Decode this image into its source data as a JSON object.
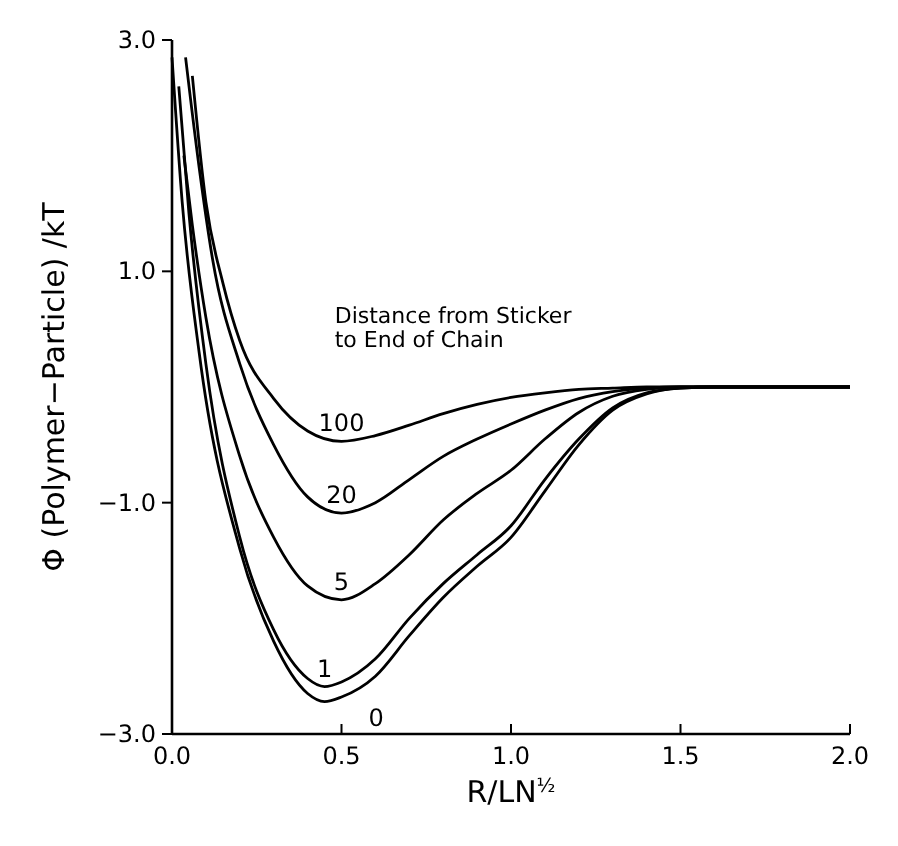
{
  "chart_data": {
    "type": "line",
    "xlabel": "R/LN$^{½}$",
    "ylabel": "Φ (Polymer−Particle) /kT",
    "xlim": [
      0,
      2.0
    ],
    "ylim": [
      -3.0,
      3.0
    ],
    "xticks": [
      {
        "value": 0,
        "label": "0.0"
      },
      {
        "value": 0.5,
        "label": "0.5"
      },
      {
        "value": 1,
        "label": "1.0"
      },
      {
        "value": 1.5,
        "label": "1.5"
      },
      {
        "value": 2,
        "label": "2.0"
      }
    ],
    "yticks": [
      {
        "value": -3,
        "label": "−3.0"
      },
      {
        "value": -1,
        "label": "−1.0"
      },
      {
        "value": 1,
        "label": "1.0"
      },
      {
        "value": 3,
        "label": "3.0"
      }
    ],
    "grid": false,
    "marker": "none",
    "line_style": "solid",
    "annotations": [
      "Distance from Sticker\nto End of Chain"
    ],
    "series": [
      {
        "name": "100",
        "color": "#000000",
        "x": [
          0.06,
          0.1,
          0.15,
          0.2,
          0.3,
          0.4,
          0.5,
          0.6,
          0.7,
          0.8,
          0.9,
          1.0,
          1.1,
          1.2,
          1.3,
          1.4,
          2.0
        ],
        "values": [
          2.69,
          1.6,
          0.9,
          0.4,
          -0.1,
          -0.38,
          -0.47,
          -0.42,
          -0.33,
          -0.23,
          -0.15,
          -0.09,
          -0.05,
          -0.02,
          -0.01,
          0,
          0
        ]
      },
      {
        "name": "20",
        "color": "#000000",
        "x": [
          0.04,
          0.08,
          0.12,
          0.2,
          0.3,
          0.4,
          0.5,
          0.6,
          0.7,
          0.8,
          0.9,
          1.0,
          1.1,
          1.2,
          1.3,
          1.4,
          1.5,
          2.0
        ],
        "values": [
          2.85,
          1.9,
          1.1,
          0.2,
          -0.5,
          -0.95,
          -1.09,
          -1.0,
          -0.8,
          -0.6,
          -0.45,
          -0.32,
          -0.2,
          -0.1,
          -0.04,
          -0.01,
          0,
          0
        ]
      },
      {
        "name": "5",
        "color": "#000000",
        "x": [
          0.035,
          0.06,
          0.1,
          0.2,
          0.3,
          0.4,
          0.5,
          0.6,
          0.7,
          0.8,
          0.9,
          1.0,
          1.1,
          1.2,
          1.3,
          1.4,
          1.5,
          2.0
        ],
        "values": [
          2.0,
          1.4,
          0.6,
          -0.6,
          -1.3,
          -1.72,
          -1.84,
          -1.7,
          -1.45,
          -1.15,
          -0.92,
          -0.72,
          -0.45,
          -0.22,
          -0.08,
          -0.02,
          0,
          0
        ]
      },
      {
        "name": "1",
        "color": "#000000",
        "x": [
          0.02,
          0.05,
          0.1,
          0.2,
          0.3,
          0.4,
          0.45,
          0.5,
          0.6,
          0.7,
          0.8,
          0.9,
          1.0,
          1.1,
          1.2,
          1.3,
          1.4,
          1.5,
          1.6,
          2.0
        ],
        "values": [
          2.6,
          1.5,
          0.2,
          -1.3,
          -2.1,
          -2.52,
          -2.59,
          -2.55,
          -2.35,
          -2.0,
          -1.7,
          -1.45,
          -1.2,
          -0.8,
          -0.45,
          -0.18,
          -0.05,
          -0.01,
          0,
          0
        ]
      },
      {
        "name": "0",
        "color": "#000000",
        "x": [
          0.0,
          0.03,
          0.08,
          0.2,
          0.3,
          0.4,
          0.45,
          0.5,
          0.6,
          0.7,
          0.8,
          0.9,
          1.0,
          1.1,
          1.2,
          1.3,
          1.4,
          1.5,
          1.6,
          2.0
        ],
        "values": [
          2.85,
          1.6,
          0.3,
          -1.4,
          -2.2,
          -2.65,
          -2.72,
          -2.68,
          -2.5,
          -2.15,
          -1.82,
          -1.55,
          -1.3,
          -0.9,
          -0.5,
          -0.2,
          -0.06,
          -0.01,
          0,
          0
        ]
      }
    ]
  }
}
